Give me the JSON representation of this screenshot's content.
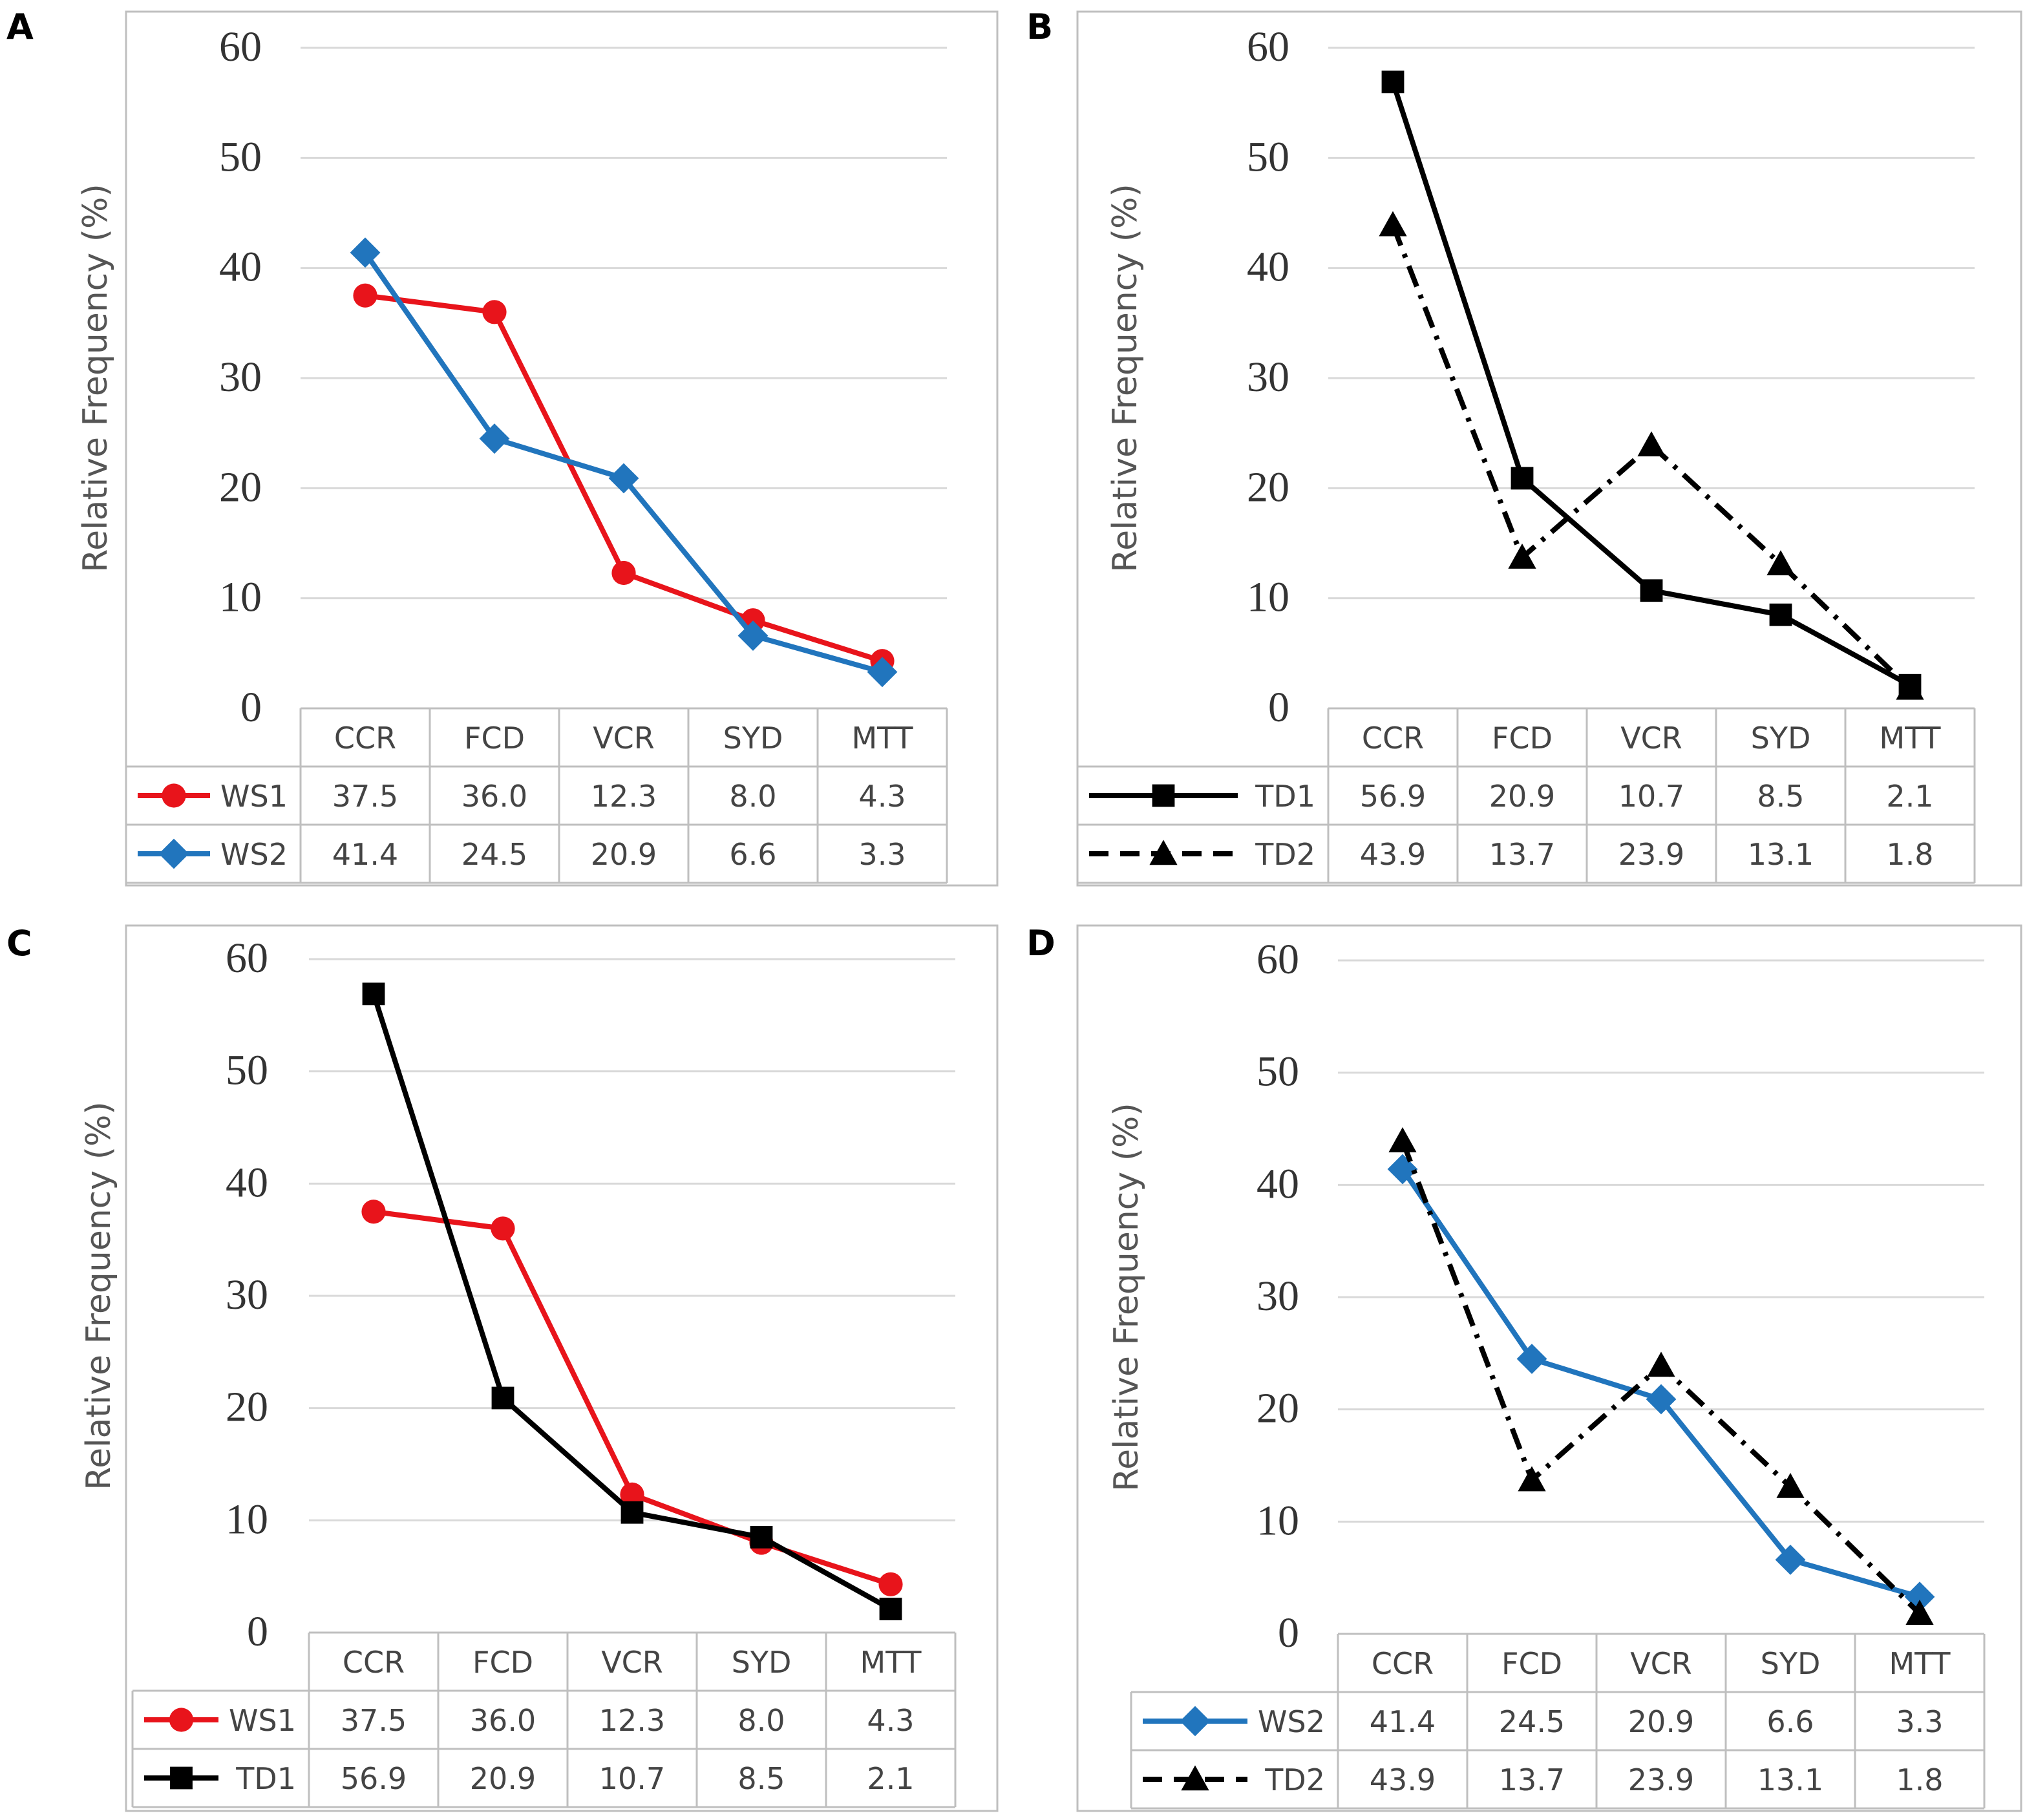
{
  "figure": {
    "panels": [
      "A",
      "B",
      "C",
      "D"
    ]
  },
  "chart_data": [
    {
      "panel": "A",
      "type": "line",
      "title": "",
      "xlabel": "",
      "ylabel": "Relative Frequency (%)",
      "ylim": [
        0,
        60
      ],
      "yticks": [
        0,
        10,
        20,
        30,
        40,
        50,
        60
      ],
      "grid": true,
      "categories": [
        "CCR",
        "FCD",
        "VCR",
        "SYD",
        "MTT"
      ],
      "series": [
        {
          "name": "WS1",
          "values": [
            37.5,
            36.0,
            12.3,
            8.0,
            4.3
          ],
          "labels": [
            "37.5",
            "36.0",
            "12.3",
            "8.0",
            "4.3"
          ],
          "color": "#E8141B",
          "marker": "circle",
          "dash": "solid"
        },
        {
          "name": "WS2",
          "values": [
            41.4,
            24.5,
            20.9,
            6.6,
            3.3
          ],
          "labels": [
            "41.4",
            "24.5",
            "20.9",
            "6.6",
            "3.3"
          ],
          "color": "#2175BD",
          "marker": "diamond",
          "dash": "solid"
        }
      ]
    },
    {
      "panel": "B",
      "type": "line",
      "title": "",
      "xlabel": "",
      "ylabel": "Relative Frequency (%)",
      "ylim": [
        0,
        60
      ],
      "yticks": [
        0,
        10,
        20,
        30,
        40,
        50,
        60
      ],
      "grid": true,
      "categories": [
        "CCR",
        "FCD",
        "VCR",
        "SYD",
        "MTT"
      ],
      "series": [
        {
          "name": "TD1",
          "values": [
            56.9,
            20.9,
            10.7,
            8.5,
            2.1
          ],
          "labels": [
            "56.9",
            "20.9",
            "10.7",
            "8.5",
            "2.1"
          ],
          "color": "#000000",
          "marker": "square",
          "dash": "solid"
        },
        {
          "name": "TD2",
          "values": [
            43.9,
            13.7,
            23.9,
            13.1,
            1.8
          ],
          "labels": [
            "43.9",
            "13.7",
            "23.9",
            "13.1",
            "1.8"
          ],
          "color": "#000000",
          "marker": "triangle",
          "dash": "dashdot"
        }
      ]
    },
    {
      "panel": "C",
      "type": "line",
      "title": "",
      "xlabel": "",
      "ylabel": "Relative Frequency (%)",
      "ylim": [
        0,
        60
      ],
      "yticks": [
        0,
        10,
        20,
        30,
        40,
        50,
        60
      ],
      "grid": true,
      "categories": [
        "CCR",
        "FCD",
        "VCR",
        "SYD",
        "MTT"
      ],
      "series": [
        {
          "name": "WS1",
          "values": [
            37.5,
            36.0,
            12.3,
            8.0,
            4.3
          ],
          "labels": [
            "37.5",
            "36.0",
            "12.3",
            "8.0",
            "4.3"
          ],
          "color": "#E8141B",
          "marker": "circle",
          "dash": "solid"
        },
        {
          "name": "TD1",
          "values": [
            56.9,
            20.9,
            10.7,
            8.5,
            2.1
          ],
          "labels": [
            "56.9",
            "20.9",
            "10.7",
            "8.5",
            "2.1"
          ],
          "color": "#000000",
          "marker": "square",
          "dash": "solid"
        }
      ]
    },
    {
      "panel": "D",
      "type": "line",
      "title": "",
      "xlabel": "",
      "ylabel": "Relative Frequency (%)",
      "ylim": [
        0,
        60
      ],
      "yticks": [
        0,
        10,
        20,
        30,
        40,
        50,
        60
      ],
      "grid": true,
      "categories": [
        "CCR",
        "FCD",
        "VCR",
        "SYD",
        "MTT"
      ],
      "series": [
        {
          "name": "WS2",
          "values": [
            41.4,
            24.5,
            20.9,
            6.6,
            3.3
          ],
          "labels": [
            "41.4",
            "24.5",
            "20.9",
            "6.6",
            "3.3"
          ],
          "color": "#2175BD",
          "marker": "diamond",
          "dash": "solid"
        },
        {
          "name": "TD2",
          "values": [
            43.9,
            13.7,
            23.9,
            13.1,
            1.8
          ],
          "labels": [
            "43.9",
            "13.7",
            "23.9",
            "13.1",
            "1.8"
          ],
          "color": "#000000",
          "marker": "triangle",
          "dash": "dashdot"
        }
      ]
    }
  ]
}
